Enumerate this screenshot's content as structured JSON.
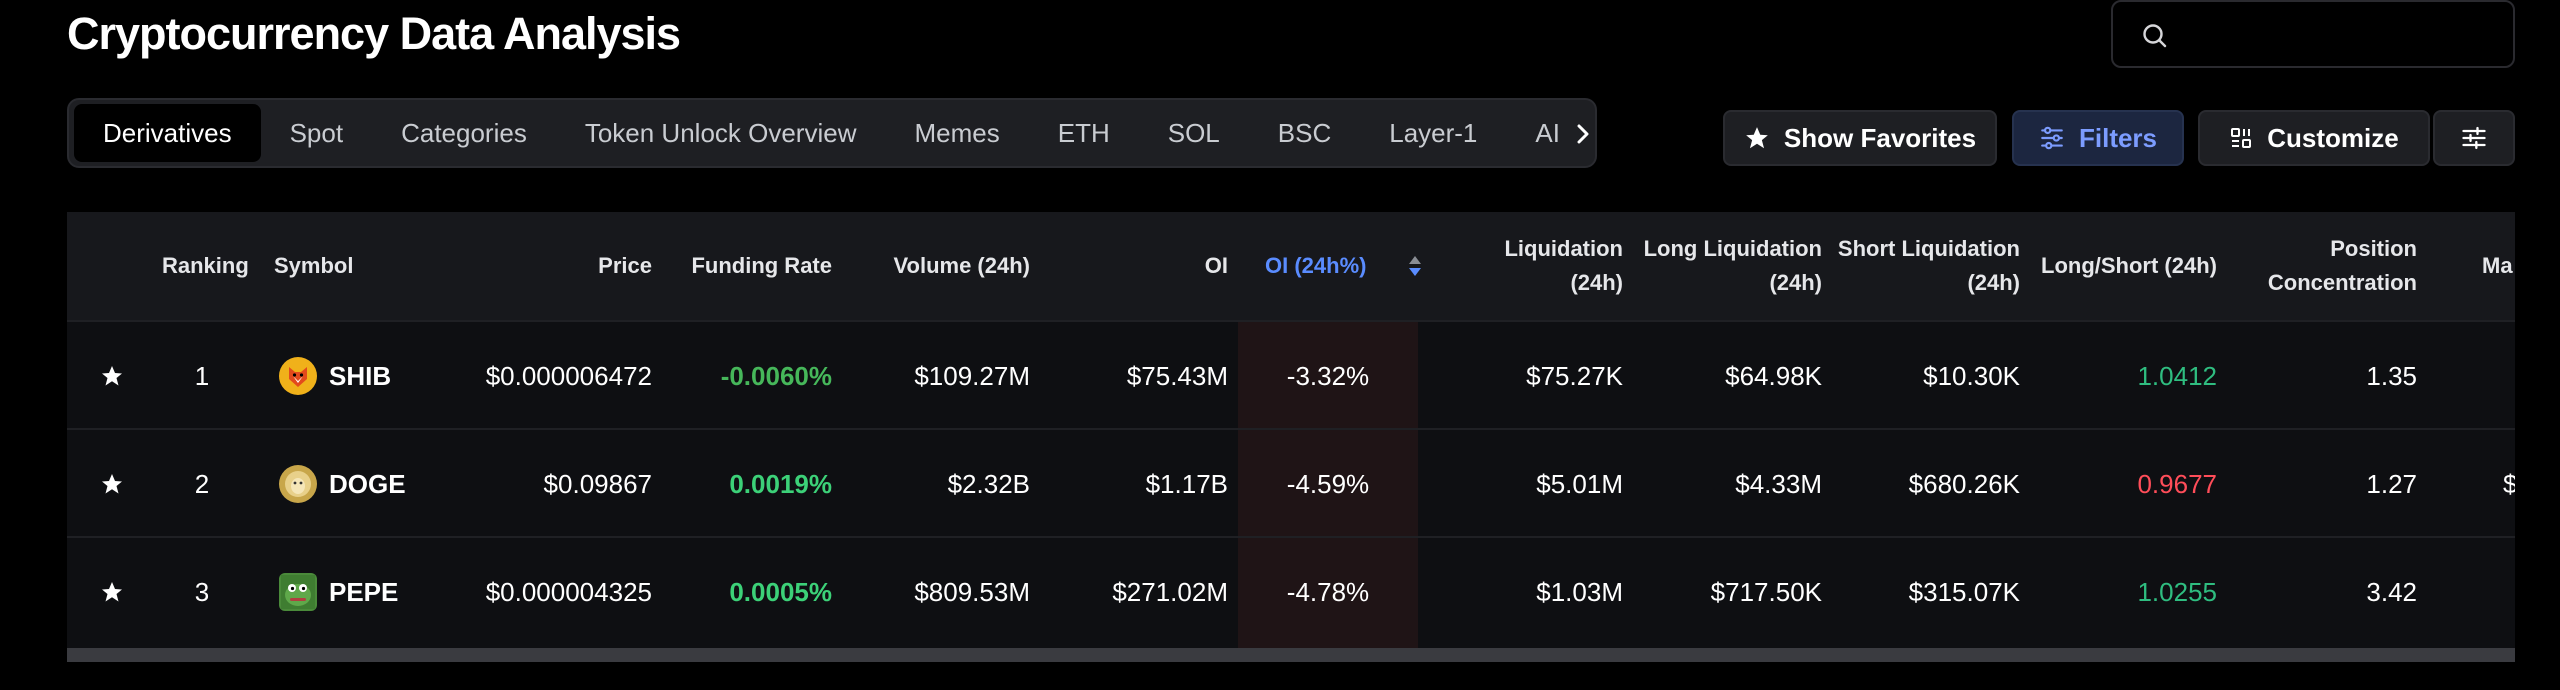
{
  "page": {
    "title": "Cryptocurrency Data Analysis"
  },
  "search": {
    "placeholder": ""
  },
  "tabs": [
    {
      "label": "Derivatives",
      "active": true
    },
    {
      "label": "Spot"
    },
    {
      "label": "Categories"
    },
    {
      "label": "Token Unlock Overview"
    },
    {
      "label": "Memes"
    },
    {
      "label": "ETH"
    },
    {
      "label": "SOL"
    },
    {
      "label": "BSC"
    },
    {
      "label": "Layer-1"
    },
    {
      "label": "AI"
    }
  ],
  "toolbar": {
    "show_favorites": "Show Favorites",
    "filters": "Filters",
    "customize": "Customize"
  },
  "table": {
    "headers": {
      "ranking": "Ranking",
      "symbol": "Symbol",
      "price": "Price",
      "funding_rate": "Funding Rate",
      "volume": "Volume (24h)",
      "oi": "OI",
      "oi_change": "OI (24h%)",
      "liquidation": "Liquidation (24h)",
      "long_liq_1": "Long Liquidation",
      "long_liq_2": "(24h)",
      "short_liq_1": "Short Liquidation",
      "short_liq_2": "(24h)",
      "long_short": "Long/Short (24h)",
      "position_1": "Position",
      "position_2": "Concentration",
      "ma": "Ma"
    },
    "rows": [
      {
        "rank": "1",
        "symbol": "SHIB",
        "price": "$0.000006472",
        "funding": "-0.0060%",
        "volume": "$109.27M",
        "oi": "$75.43M",
        "oi_change": "-3.32%",
        "liq": "$75.27K",
        "long_liq": "$64.98K",
        "short_liq": "$10.30K",
        "ls": "1.0412",
        "ls_dir": "up",
        "pos": "1.35",
        "ma": ""
      },
      {
        "rank": "2",
        "symbol": "DOGE",
        "price": "$0.09867",
        "funding": "0.0019%",
        "volume": "$2.32B",
        "oi": "$1.17B",
        "oi_change": "-4.59%",
        "liq": "$5.01M",
        "long_liq": "$4.33M",
        "short_liq": "$680.26K",
        "ls": "0.9677",
        "ls_dir": "down",
        "pos": "1.27",
        "ma": "$"
      },
      {
        "rank": "3",
        "symbol": "PEPE",
        "price": "$0.000004325",
        "funding": "0.0005%",
        "volume": "$809.53M",
        "oi": "$271.02M",
        "oi_change": "-4.78%",
        "liq": "$1.03M",
        "long_liq": "$717.50K",
        "short_liq": "$315.07K",
        "ls": "1.0255",
        "ls_dir": "up",
        "pos": "3.42",
        "ma": ""
      }
    ]
  },
  "colors": {
    "accent_blue": "#5a8cff",
    "positive": "#3cd178",
    "negative": "#ff4d59"
  }
}
